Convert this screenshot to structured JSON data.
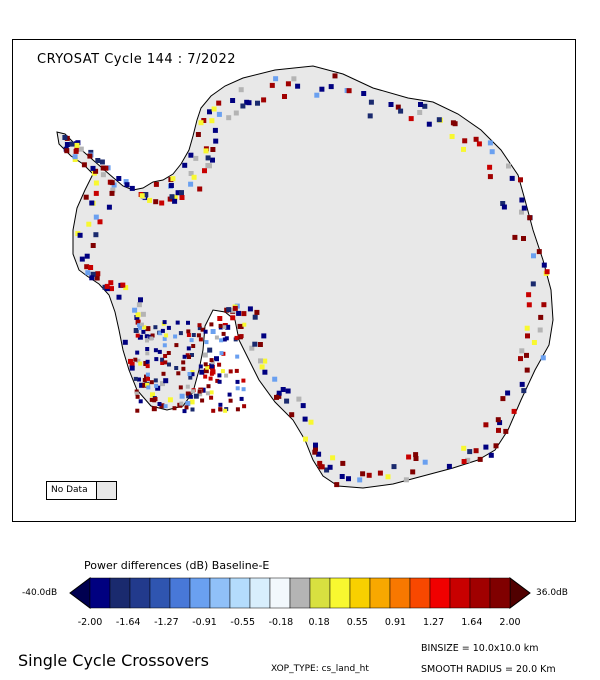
{
  "map": {
    "title": "CRYOSAT Cycle 144 : 7/2022",
    "no_data_label": "No Data",
    "land_color": "#e8e8e8",
    "outline_color": "#000000"
  },
  "colorbar": {
    "title": "Power differences (dB) Baseline-E",
    "min_label": "-40.0dB",
    "max_label": "36.0dB",
    "ticks": [
      "-2.00",
      "-1.64",
      "-1.27",
      "-0.91",
      "-0.55",
      "-0.18",
      "0.18",
      "0.55",
      "0.91",
      "1.27",
      "1.64",
      "2.00"
    ],
    "colors": [
      "#000080",
      "#1a2a6e",
      "#223a8c",
      "#2f55b0",
      "#4878d8",
      "#6aa0f0",
      "#90c0f8",
      "#b4dcfc",
      "#d8eefc",
      "#f2f8fc",
      "#b4b4b4",
      "#d8e040",
      "#f8f830",
      "#f8d000",
      "#f8a800",
      "#f87800",
      "#f84800",
      "#f00000",
      "#c80000",
      "#a00000",
      "#800000"
    ],
    "end_low_color": "#000050",
    "end_high_color": "#500000"
  },
  "footer": {
    "title": "Single Cycle Crossovers",
    "binsize": "BINSIZE = 10.0x10.0 km",
    "xop_type": "XOP_TYPE: cs_land_ht",
    "smooth_radius": "SMOOTH RADIUS =  20.0 Km"
  }
}
